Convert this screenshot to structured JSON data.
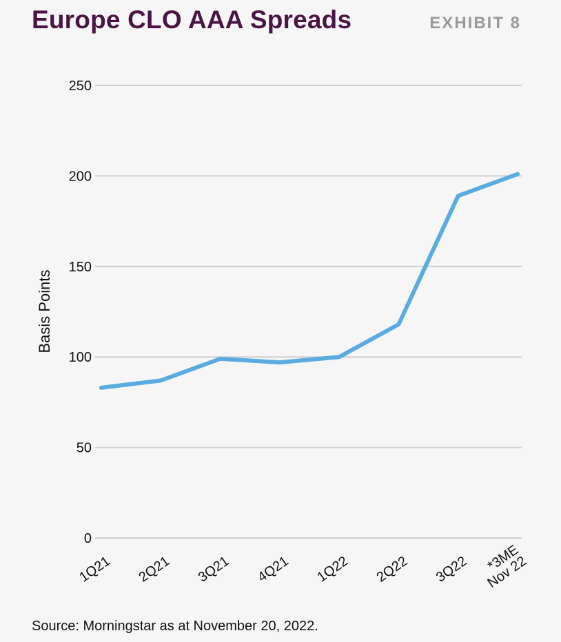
{
  "header": {
    "title": "Europe CLO AAA Spreads",
    "exhibit": "EXHIBIT 8"
  },
  "footer": {
    "source": "Source: Morningstar as at November 20, 2022."
  },
  "colors": {
    "title": "#4a1545",
    "exhibit": "#9a9a9a",
    "line": "#5aace0",
    "grid": "#cfcfcf",
    "background": "#f6f6f6"
  },
  "chart_data": {
    "type": "line",
    "ylabel": "Basis Points",
    "xlabel": "",
    "ylim": [
      0,
      250
    ],
    "yticks": [
      0,
      50,
      100,
      150,
      200,
      250
    ],
    "grid": true,
    "categories": [
      [
        "1Q21"
      ],
      [
        "2Q21"
      ],
      [
        "3Q21"
      ],
      [
        "4Q21"
      ],
      [
        "1Q22"
      ],
      [
        "2Q22"
      ],
      [
        "3Q22"
      ],
      [
        "*3ME",
        "Nov 22"
      ]
    ],
    "series": [
      {
        "values": [
          83,
          87,
          99,
          97,
          100,
          118,
          189,
          201
        ]
      }
    ]
  }
}
